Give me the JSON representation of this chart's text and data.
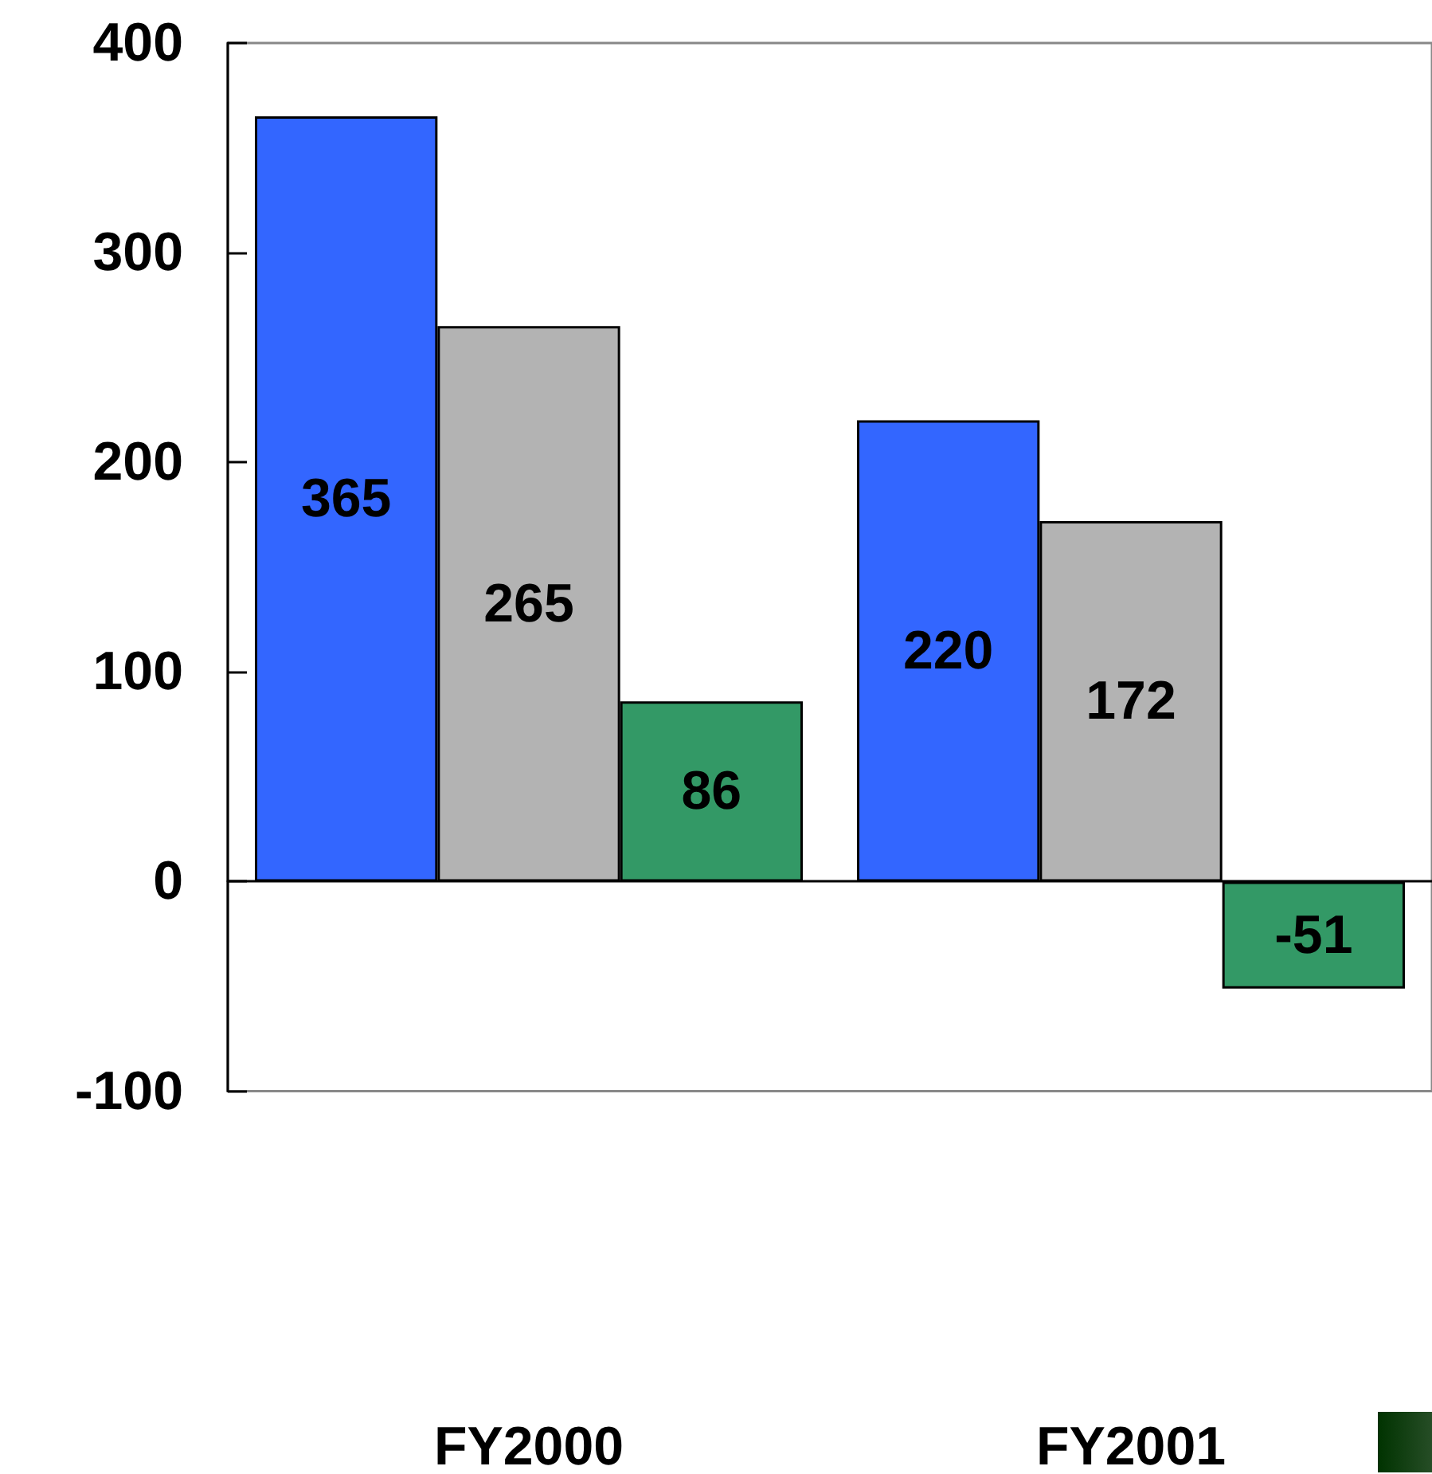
{
  "chart_data": {
    "type": "bar",
    "categories": [
      "FY2000",
      "FY2001"
    ],
    "series": [
      {
        "color": "#3366ff",
        "values": [
          365,
          220
        ]
      },
      {
        "color": "#b3b3b3",
        "values": [
          265,
          172
        ]
      },
      {
        "color": "#339966",
        "values": [
          86,
          -51
        ]
      }
    ],
    "ylim": [
      -100,
      400
    ],
    "yticks": [
      -100,
      0,
      100,
      200,
      300,
      400
    ],
    "data_labels": true
  }
}
